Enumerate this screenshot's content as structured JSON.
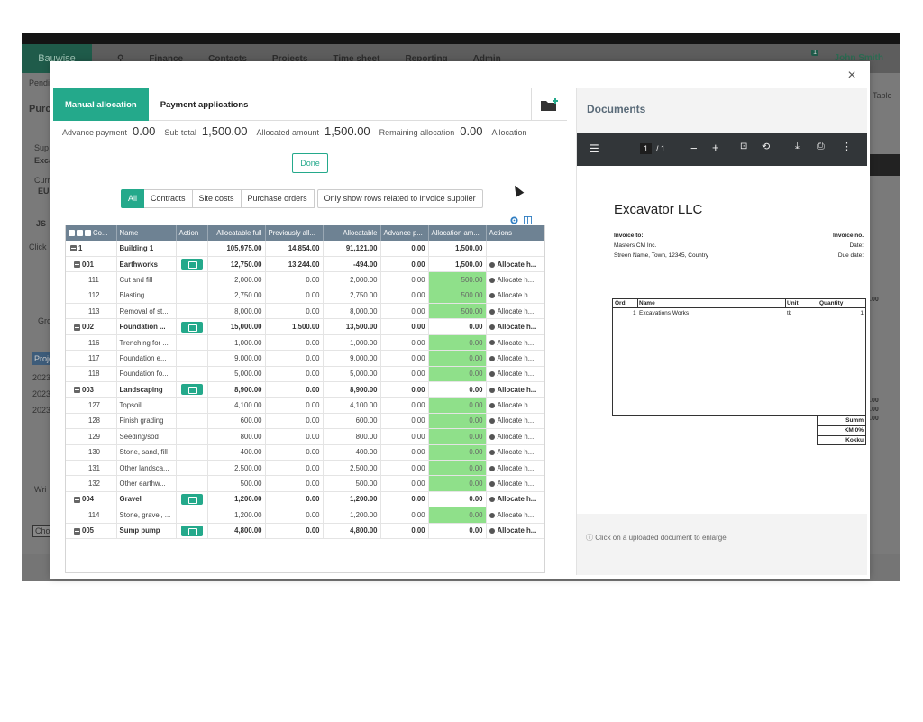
{
  "app": {
    "logo": "Bauwise",
    "nav": [
      "Finance",
      "Contacts",
      "Projects",
      "Time sheet",
      "Reporting",
      "Admin"
    ],
    "user": "John Smith",
    "notification_count": "1",
    "bg_texts": [
      "Pendi",
      "Purc",
      "Sup",
      "Exca",
      "Curr",
      "EUI",
      "JS",
      "Click",
      "Gro",
      "Proje",
      "2023",
      "2023",
      "2023",
      "Wri",
      "Choo",
      "Table",
      ".00",
      ".00",
      ".00",
      ".00"
    ]
  },
  "modal": {
    "close": "×",
    "tabs": [
      {
        "label": "Manual allocation",
        "active": true
      },
      {
        "label": "Payment applications",
        "active": false
      }
    ],
    "summary": [
      {
        "label": "Advance payment",
        "value": "0.00"
      },
      {
        "label": "Sub total",
        "value": "1,500.00"
      },
      {
        "label": "Allocated amount",
        "value": "1,500.00"
      },
      {
        "label": "Remaining allocation",
        "value": "0.00"
      },
      {
        "label": "Allocation",
        "value": ""
      }
    ],
    "done_label": "Done",
    "filters": [
      "All",
      "Contracts",
      "Site costs",
      "Purchase orders",
      "Only show rows related to invoice supplier"
    ],
    "grid": {
      "headers": [
        "Co...",
        "Name",
        "Action",
        "Allocatable full",
        "Previously all...",
        "Allocatable",
        "Advance p...",
        "Allocation am...",
        "Actions"
      ],
      "rows": [
        {
          "level": 0,
          "code": "1",
          "name": "Building 1",
          "folder": false,
          "full": "105,975.00",
          "prev": "14,854.00",
          "alloc": "91,121.00",
          "adv": "0.00",
          "amount": "1,500.00",
          "green": false,
          "actions": ""
        },
        {
          "level": 1,
          "code": "001",
          "name": "Earthworks",
          "folder": true,
          "full": "12,750.00",
          "prev": "13,244.00",
          "alloc": "-494.00",
          "adv": "0.00",
          "amount": "1,500.00",
          "green": false,
          "actions": "Allocate h..."
        },
        {
          "level": 2,
          "code": "111",
          "name": "Cut and fill",
          "folder": false,
          "full": "2,000.00",
          "prev": "0.00",
          "alloc": "2,000.00",
          "adv": "0.00",
          "amount": "500.00",
          "green": true,
          "actions": "Allocate h..."
        },
        {
          "level": 2,
          "code": "112",
          "name": "Blasting",
          "folder": false,
          "full": "2,750.00",
          "prev": "0.00",
          "alloc": "2,750.00",
          "adv": "0.00",
          "amount": "500.00",
          "green": true,
          "actions": "Allocate h..."
        },
        {
          "level": 2,
          "code": "113",
          "name": "Removal of st...",
          "folder": false,
          "full": "8,000.00",
          "prev": "0.00",
          "alloc": "8,000.00",
          "adv": "0.00",
          "amount": "500.00",
          "green": true,
          "actions": "Allocate h..."
        },
        {
          "level": 1,
          "code": "002",
          "name": "Foundation ...",
          "folder": true,
          "full": "15,000.00",
          "prev": "1,500.00",
          "alloc": "13,500.00",
          "adv": "0.00",
          "amount": "0.00",
          "green": false,
          "actions": "Allocate h..."
        },
        {
          "level": 2,
          "code": "116",
          "name": "Trenching for ...",
          "folder": false,
          "full": "1,000.00",
          "prev": "0.00",
          "alloc": "1,000.00",
          "adv": "0.00",
          "amount": "0.00",
          "green": true,
          "actions": "Allocate h..."
        },
        {
          "level": 2,
          "code": "117",
          "name": "Foundation e...",
          "folder": false,
          "full": "9,000.00",
          "prev": "0.00",
          "alloc": "9,000.00",
          "adv": "0.00",
          "amount": "0.00",
          "green": true,
          "actions": "Allocate h..."
        },
        {
          "level": 2,
          "code": "118",
          "name": "Foundation fo...",
          "folder": false,
          "full": "5,000.00",
          "prev": "0.00",
          "alloc": "5,000.00",
          "adv": "0.00",
          "amount": "0.00",
          "green": true,
          "actions": "Allocate h..."
        },
        {
          "level": 1,
          "code": "003",
          "name": "Landscaping",
          "folder": true,
          "full": "8,900.00",
          "prev": "0.00",
          "alloc": "8,900.00",
          "adv": "0.00",
          "amount": "0.00",
          "green": false,
          "actions": "Allocate h..."
        },
        {
          "level": 2,
          "code": "127",
          "name": "Topsoil",
          "folder": false,
          "full": "4,100.00",
          "prev": "0.00",
          "alloc": "4,100.00",
          "adv": "0.00",
          "amount": "0.00",
          "green": true,
          "actions": "Allocate h..."
        },
        {
          "level": 2,
          "code": "128",
          "name": "Finish grading",
          "folder": false,
          "full": "600.00",
          "prev": "0.00",
          "alloc": "600.00",
          "adv": "0.00",
          "amount": "0.00",
          "green": true,
          "actions": "Allocate h..."
        },
        {
          "level": 2,
          "code": "129",
          "name": "Seeding/sod",
          "folder": false,
          "full": "800.00",
          "prev": "0.00",
          "alloc": "800.00",
          "adv": "0.00",
          "amount": "0.00",
          "green": true,
          "actions": "Allocate h..."
        },
        {
          "level": 2,
          "code": "130",
          "name": "Stone, sand, fill",
          "folder": false,
          "full": "400.00",
          "prev": "0.00",
          "alloc": "400.00",
          "adv": "0.00",
          "amount": "0.00",
          "green": true,
          "actions": "Allocate h..."
        },
        {
          "level": 2,
          "code": "131",
          "name": "Other landsca...",
          "folder": false,
          "full": "2,500.00",
          "prev": "0.00",
          "alloc": "2,500.00",
          "adv": "0.00",
          "amount": "0.00",
          "green": true,
          "actions": "Allocate h..."
        },
        {
          "level": 2,
          "code": "132",
          "name": "Other earthw...",
          "folder": false,
          "full": "500.00",
          "prev": "0.00",
          "alloc": "500.00",
          "adv": "0.00",
          "amount": "0.00",
          "green": true,
          "actions": "Allocate h..."
        },
        {
          "level": 1,
          "code": "004",
          "name": "Gravel",
          "folder": true,
          "full": "1,200.00",
          "prev": "0.00",
          "alloc": "1,200.00",
          "adv": "0.00",
          "amount": "0.00",
          "green": false,
          "actions": "Allocate h..."
        },
        {
          "level": 2,
          "code": "114",
          "name": "Stone, gravel, ...",
          "folder": false,
          "full": "1,200.00",
          "prev": "0.00",
          "alloc": "1,200.00",
          "adv": "0.00",
          "amount": "0.00",
          "green": true,
          "actions": "Allocate h..."
        },
        {
          "level": 1,
          "code": "005",
          "name": "Sump pump",
          "folder": true,
          "full": "4,800.00",
          "prev": "0.00",
          "alloc": "4,800.00",
          "adv": "0.00",
          "amount": "0.00",
          "green": false,
          "actions": "Allocate h..."
        }
      ]
    },
    "documents": {
      "title": "Documents",
      "pdf_page_current": "1",
      "pdf_page_total": "/ 1",
      "invoice": {
        "company": "Excavator LLC",
        "to_label": "Invoice to:",
        "to_name": "Masters CM Inc.",
        "to_address": "Streen Name, Town, 12345, Country",
        "no_label": "Invoice no.",
        "date_label": "Date:",
        "due_label": "Due date:",
        "cols": [
          "Ord.",
          "Name",
          "Unit",
          "Quantity"
        ],
        "line": {
          "ord": "1",
          "name": "Excavations Works",
          "unit": "tk",
          "qty": "1"
        },
        "totals": [
          "Summ",
          "KM 0%",
          "Kokku"
        ]
      },
      "hint": "Click on a uploaded document to enlarge"
    }
  },
  "colors": {
    "accent": "#24a98b",
    "header": "#6e8293",
    "highlight": "#8fe08a"
  }
}
